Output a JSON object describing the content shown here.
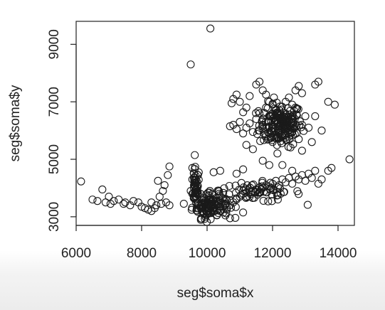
{
  "chart_data": {
    "type": "scatter",
    "title": "",
    "xlabel": "seg$soma$x",
    "ylabel": "seg$soma$y",
    "xlim": [
      6000,
      14500
    ],
    "ylim": [
      2700,
      9800
    ],
    "x_ticks": [
      "6000",
      "8000",
      "10000",
      "12000",
      "14000"
    ],
    "x_tick_values": [
      6000,
      8000,
      10000,
      12000,
      14000
    ],
    "y_ticks": [
      "3000",
      "5000",
      "7000",
      "9000"
    ],
    "y_tick_values": [
      3000,
      5000,
      7000,
      9000
    ],
    "grid": false,
    "legend": "none",
    "marker": "open-circle",
    "marker_color": "#1a1a1a",
    "points": [
      [
        6150,
        4230
      ],
      [
        6500,
        3600
      ],
      [
        6650,
        3550
      ],
      [
        6800,
        3950
      ],
      [
        6900,
        3500
      ],
      [
        7000,
        3700
      ],
      [
        7050,
        3450
      ],
      [
        7150,
        3550
      ],
      [
        7300,
        3600
      ],
      [
        7450,
        3450
      ],
      [
        7500,
        3500
      ],
      [
        7650,
        3400
      ],
      [
        7750,
        3550
      ],
      [
        7900,
        3500
      ],
      [
        8000,
        3350
      ],
      [
        8100,
        3300
      ],
      [
        8200,
        3250
      ],
      [
        8300,
        3200
      ],
      [
        8400,
        3300
      ],
      [
        8500,
        4250
      ],
      [
        8550,
        3700
      ],
      [
        8600,
        3450
      ],
      [
        8650,
        3900
      ],
      [
        8700,
        4100
      ],
      [
        8750,
        3500
      ],
      [
        8800,
        4450
      ],
      [
        8850,
        4750
      ],
      [
        8850,
        3400
      ],
      [
        8300,
        3500
      ],
      [
        8450,
        3400
      ],
      [
        9500,
        8300
      ],
      [
        10100,
        9550
      ],
      [
        9550,
        4700
      ],
      [
        9600,
        4500
      ],
      [
        9550,
        4300
      ],
      [
        9600,
        4100
      ],
      [
        9500,
        3900
      ],
      [
        9550,
        3800
      ],
      [
        9600,
        3700
      ],
      [
        9650,
        3600
      ],
      [
        9700,
        3500
      ],
      [
        9750,
        3400
      ],
      [
        9800,
        3300
      ],
      [
        9850,
        3200
      ],
      [
        9900,
        3100
      ],
      [
        9950,
        3000
      ],
      [
        10000,
        3200
      ],
      [
        10050,
        3300
      ],
      [
        10100,
        3400
      ],
      [
        10000,
        3500
      ],
      [
        9900,
        3600
      ],
      [
        9800,
        3800
      ],
      [
        9700,
        4000
      ],
      [
        9650,
        4200
      ],
      [
        10200,
        3300
      ],
      [
        10300,
        3400
      ],
      [
        10400,
        3200
      ],
      [
        10300,
        3050
      ],
      [
        10500,
        3150
      ],
      [
        10600,
        3250
      ],
      [
        10700,
        3400
      ],
      [
        10800,
        3500
      ],
      [
        10900,
        3600
      ],
      [
        11000,
        3700
      ],
      [
        11100,
        3800
      ],
      [
        11200,
        3850
      ],
      [
        11300,
        3700
      ],
      [
        11400,
        3900
      ],
      [
        11500,
        3950
      ],
      [
        11600,
        3850
      ],
      [
        11700,
        4000
      ],
      [
        11800,
        4100
      ],
      [
        11900,
        4050
      ],
      [
        12000,
        4150
      ],
      [
        12100,
        4250
      ],
      [
        12200,
        4100
      ],
      [
        12300,
        4300
      ],
      [
        12400,
        4200
      ],
      [
        12500,
        4350
      ],
      [
        12600,
        4150
      ],
      [
        12700,
        4400
      ],
      [
        12800,
        4300
      ],
      [
        12900,
        4450
      ],
      [
        13000,
        4250
      ],
      [
        13100,
        4500
      ],
      [
        13200,
        4350
      ],
      [
        13300,
        4600
      ],
      [
        13400,
        4150
      ],
      [
        13500,
        4300
      ],
      [
        13700,
        4600
      ],
      [
        13800,
        4700
      ],
      [
        14350,
        5000
      ],
      [
        10400,
        4600
      ],
      [
        10200,
        4550
      ],
      [
        10900,
        4500
      ],
      [
        11100,
        4650
      ],
      [
        11700,
        4950
      ],
      [
        11900,
        4800
      ],
      [
        12300,
        4800
      ],
      [
        12600,
        4600
      ],
      [
        10700,
        2950
      ],
      [
        11100,
        3150
      ],
      [
        10700,
        6150
      ],
      [
        10800,
        6200
      ],
      [
        10900,
        6050
      ],
      [
        11000,
        6300
      ],
      [
        11100,
        5900
      ],
      [
        11200,
        6100
      ],
      [
        11300,
        6250
      ],
      [
        11400,
        5950
      ],
      [
        11500,
        6400
      ],
      [
        11600,
        6600
      ],
      [
        11700,
        6200
      ],
      [
        11800,
        5800
      ],
      [
        11900,
        6500
      ],
      [
        12000,
        6100
      ],
      [
        12100,
        6700
      ],
      [
        12200,
        5900
      ],
      [
        12300,
        6300
      ],
      [
        12400,
        6550
      ],
      [
        12500,
        6000
      ],
      [
        12600,
        6400
      ],
      [
        12700,
        6800
      ],
      [
        12800,
        5700
      ],
      [
        12900,
        6200
      ],
      [
        13000,
        6500
      ],
      [
        13100,
        6100
      ],
      [
        12150,
        6250
      ],
      [
        12250,
        6150
      ],
      [
        12350,
        6050
      ],
      [
        12050,
        6350
      ],
      [
        11950,
        6000
      ],
      [
        12450,
        6250
      ],
      [
        12200,
        6450
      ],
      [
        12100,
        6000
      ],
      [
        12300,
        5800
      ],
      [
        12000,
        5600
      ],
      [
        11800,
        6800
      ],
      [
        11900,
        7000
      ],
      [
        12500,
        7150
      ],
      [
        12700,
        7400
      ],
      [
        12800,
        7550
      ],
      [
        12900,
        7300
      ],
      [
        13300,
        7600
      ],
      [
        13400,
        7700
      ],
      [
        13700,
        7000
      ],
      [
        13900,
        6900
      ],
      [
        11500,
        7600
      ],
      [
        11600,
        7700
      ],
      [
        11700,
        7400
      ],
      [
        11800,
        7250
      ],
      [
        11300,
        7200
      ],
      [
        10800,
        7100
      ],
      [
        10900,
        7250
      ],
      [
        11000,
        7000
      ],
      [
        10750,
        6950
      ],
      [
        11200,
        6800
      ],
      [
        13300,
        6500
      ],
      [
        13500,
        6000
      ],
      [
        13200,
        5600
      ],
      [
        12900,
        5300
      ],
      [
        11400,
        5350
      ],
      [
        11200,
        5500
      ],
      [
        12600,
        6900
      ],
      [
        12400,
        7000
      ],
      [
        12000,
        6900
      ],
      [
        11600,
        6000
      ]
    ],
    "dense_clusters": [
      {
        "cx": 12250,
        "cy": 6200,
        "sx": 330,
        "sy": 380,
        "n": 180
      },
      {
        "cx": 10100,
        "cy": 3400,
        "sx": 280,
        "sy": 220,
        "n": 110
      },
      {
        "cx": 11500,
        "cy": 3850,
        "sx": 700,
        "sy": 170,
        "n": 70
      },
      {
        "cx": 9650,
        "cy": 4000,
        "sx": 60,
        "sy": 350,
        "n": 40
      }
    ]
  }
}
